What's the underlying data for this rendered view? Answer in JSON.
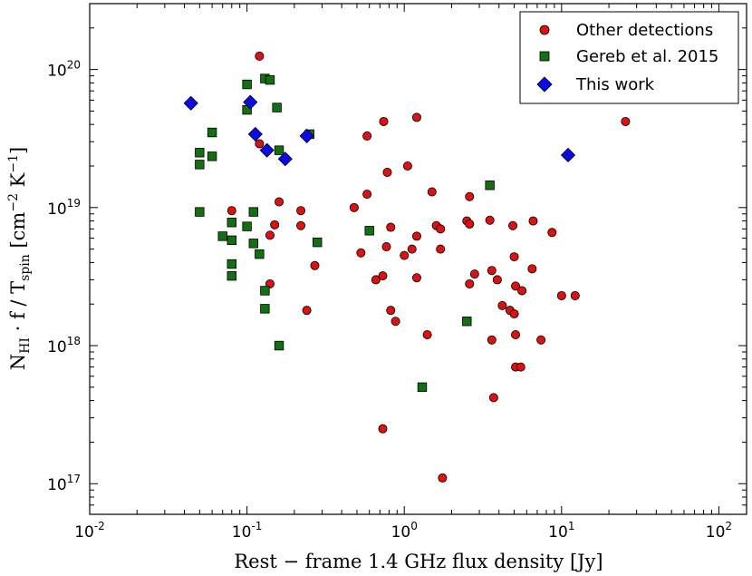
{
  "chart_data": {
    "type": "scatter",
    "title": "",
    "xlabel": "Rest − frame 1.4 GHz flux density [Jy]",
    "ylabel": "N_HI · f / T_spin [cm^-2 K^-1]",
    "xscale": "log",
    "yscale": "log",
    "xlim": [
      0.01,
      150
    ],
    "ylim": [
      6e+16,
      3e+20
    ],
    "x_ticks": [
      {
        "value": 0.01,
        "base": "10",
        "exp": "-2"
      },
      {
        "value": 0.1,
        "base": "10",
        "exp": "-1"
      },
      {
        "value": 1,
        "base": "10",
        "exp": "0"
      },
      {
        "value": 10,
        "base": "10",
        "exp": "1"
      },
      {
        "value": 100,
        "base": "10",
        "exp": "2"
      }
    ],
    "y_ticks": [
      {
        "value": 1e+17,
        "base": "10",
        "exp": "17"
      },
      {
        "value": 1e+18,
        "base": "10",
        "exp": "18"
      },
      {
        "value": 1e+19,
        "base": "10",
        "exp": "19"
      },
      {
        "value": 1e+20,
        "base": "10",
        "exp": "20"
      }
    ],
    "legend_position": "top-right",
    "series": [
      {
        "name": "Other detections",
        "marker": "circle",
        "color": "#dd1111",
        "points": [
          [
            0.12,
            1.25e+20
          ],
          [
            0.12,
            2.9e+19
          ],
          [
            0.08,
            9.5e+18
          ],
          [
            0.16,
            1.1e+19
          ],
          [
            0.15,
            7.5e+18
          ],
          [
            0.14,
            6.3e+18
          ],
          [
            0.22,
            9.5e+18
          ],
          [
            0.22,
            7.4e+18
          ],
          [
            0.14,
            2.8e+18
          ],
          [
            0.27,
            3.8e+18
          ],
          [
            0.24,
            1.8e+18
          ],
          [
            0.74,
            4.2e+19
          ],
          [
            1.2,
            4.5e+19
          ],
          [
            0.58,
            3.3e+19
          ],
          [
            0.78,
            1.8e+19
          ],
          [
            1.05,
            2e+19
          ],
          [
            0.48,
            1e+19
          ],
          [
            0.58,
            1.25e+19
          ],
          [
            0.82,
            7.2e+18
          ],
          [
            0.77,
            5.2e+18
          ],
          [
            0.53,
            4.7e+18
          ],
          [
            0.66,
            3e+18
          ],
          [
            0.73,
            3.2e+18
          ],
          [
            0.82,
            1.8e+18
          ],
          [
            0.88,
            1.5e+18
          ],
          [
            0.73,
            2.5e+17
          ],
          [
            1.12,
            5e+18
          ],
          [
            1.2,
            3.1e+18
          ],
          [
            1.2,
            6.2e+18
          ],
          [
            1.0,
            4.5e+18
          ],
          [
            1.4,
            1.2e+18
          ],
          [
            1.5,
            1.3e+19
          ],
          [
            1.6,
            7.4e+18
          ],
          [
            1.7,
            7e+18
          ],
          [
            1.7,
            5e+18
          ],
          [
            1.75,
            1.1e+17
          ],
          [
            2.6,
            1.2e+19
          ],
          [
            2.5,
            8e+18
          ],
          [
            2.6,
            7.6e+18
          ],
          [
            2.6,
            2.8e+18
          ],
          [
            2.8,
            3.3e+18
          ],
          [
            3.5,
            8.1e+18
          ],
          [
            3.6,
            3.5e+18
          ],
          [
            3.9,
            3e+18
          ],
          [
            4.2,
            1.95e+18
          ],
          [
            4.7,
            1.8e+18
          ],
          [
            3.6,
            1.1e+18
          ],
          [
            3.7,
            4.2e+17
          ],
          [
            4.9,
            7.4e+18
          ],
          [
            5.0,
            4.4e+18
          ],
          [
            5.1,
            2.7e+18
          ],
          [
            5.6,
            2.5e+18
          ],
          [
            5.0,
            1.7e+18
          ],
          [
            5.1,
            1.2e+18
          ],
          [
            5.1,
            7e+17
          ],
          [
            5.5,
            7e+17
          ],
          [
            6.6,
            8e+18
          ],
          [
            6.5,
            3.6e+18
          ],
          [
            7.4,
            1.1e+18
          ],
          [
            8.7,
            6.6e+18
          ],
          [
            10.0,
            2.3e+18
          ],
          [
            12.2,
            2.3e+18
          ],
          [
            25.5,
            4.2e+19
          ]
        ]
      },
      {
        "name": "Gereb et al. 2015",
        "marker": "square",
        "color": "#127012",
        "points": [
          [
            0.1,
            7.8e+19
          ],
          [
            0.1,
            5.1e+19
          ],
          [
            0.13,
            8.6e+19
          ],
          [
            0.14,
            8.4e+19
          ],
          [
            0.155,
            5.3e+19
          ],
          [
            0.06,
            3.5e+19
          ],
          [
            0.05,
            2.5e+19
          ],
          [
            0.06,
            2.35e+19
          ],
          [
            0.05,
            2.05e+19
          ],
          [
            0.16,
            2.6e+19
          ],
          [
            0.25,
            3.4e+19
          ],
          [
            0.05,
            9.3e+18
          ],
          [
            0.08,
            7.8e+18
          ],
          [
            0.11,
            9.3e+18
          ],
          [
            0.1,
            7.3e+18
          ],
          [
            0.07,
            6.2e+18
          ],
          [
            0.08,
            5.8e+18
          ],
          [
            0.11,
            5.5e+18
          ],
          [
            0.12,
            4.6e+18
          ],
          [
            0.08,
            3.9e+18
          ],
          [
            0.08,
            3.2e+18
          ],
          [
            0.28,
            5.6e+18
          ],
          [
            0.13,
            2.5e+18
          ],
          [
            0.13,
            1.85e+18
          ],
          [
            0.16,
            1e+18
          ],
          [
            0.6,
            6.8e+18
          ],
          [
            1.3,
            5e+17
          ],
          [
            2.5,
            1.5e+18
          ],
          [
            3.5,
            1.45e+19
          ]
        ]
      },
      {
        "name": "This work",
        "marker": "diamond",
        "color": "#0a0ae8",
        "points": [
          [
            0.044,
            5.7e+19
          ],
          [
            0.105,
            5.8e+19
          ],
          [
            0.113,
            3.4e+19
          ],
          [
            0.134,
            2.6e+19
          ],
          [
            0.175,
            2.25e+19
          ],
          [
            0.24,
            3.3e+19
          ],
          [
            11.0,
            2.4e+19
          ]
        ]
      }
    ]
  }
}
